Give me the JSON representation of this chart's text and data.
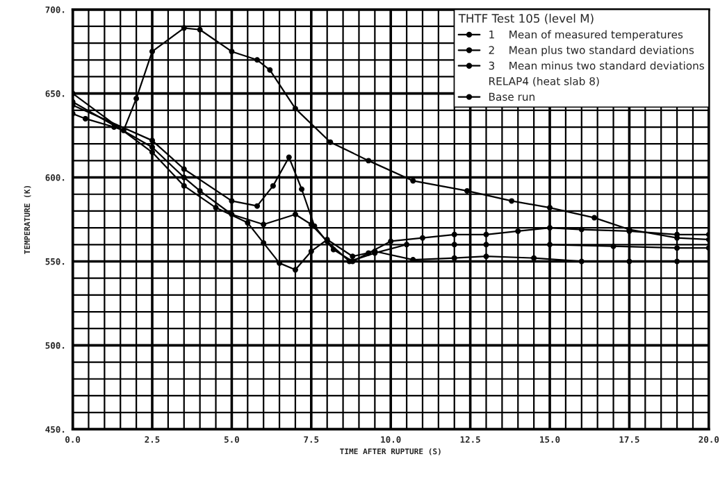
{
  "chart_data": {
    "type": "line",
    "xlabel": "TIME AFTER RUPTURE (S)",
    "ylabel": "TEMPERATURE (K)",
    "legend_title": "THTF Test 105 (level M)",
    "annotations": [
      "RELAP4 (heat slab 8)"
    ],
    "xlim": [
      0,
      20
    ],
    "ylim": [
      450,
      700
    ],
    "xticks": [
      {
        "value": 0,
        "label": "0.0"
      },
      {
        "value": 0.5,
        "label": null
      },
      {
        "value": 1,
        "label": null
      },
      {
        "value": 1.5,
        "label": null
      },
      {
        "value": 2,
        "label": null
      },
      {
        "value": 2.5,
        "label": "2.5"
      },
      {
        "value": 3,
        "label": null
      },
      {
        "value": 3.5,
        "label": null
      },
      {
        "value": 4,
        "label": null
      },
      {
        "value": 4.5,
        "label": null
      },
      {
        "value": 5,
        "label": "5.0"
      },
      {
        "value": 5.5,
        "label": null
      },
      {
        "value": 6,
        "label": null
      },
      {
        "value": 6.5,
        "label": null
      },
      {
        "value": 7,
        "label": null
      },
      {
        "value": 7.5,
        "label": "7.5"
      },
      {
        "value": 8,
        "label": null
      },
      {
        "value": 8.5,
        "label": null
      },
      {
        "value": 9,
        "label": null
      },
      {
        "value": 9.5,
        "label": null
      },
      {
        "value": 10,
        "label": "10.0"
      },
      {
        "value": 10.5,
        "label": null
      },
      {
        "value": 11,
        "label": null
      },
      {
        "value": 11.5,
        "label": null
      },
      {
        "value": 12,
        "label": null
      },
      {
        "value": 12.5,
        "label": "12.5"
      },
      {
        "value": 13,
        "label": null
      },
      {
        "value": 13.5,
        "label": null
      },
      {
        "value": 14,
        "label": null
      },
      {
        "value": 14.5,
        "label": null
      },
      {
        "value": 15,
        "label": "15.0"
      },
      {
        "value": 15.5,
        "label": null
      },
      {
        "value": 16,
        "label": null
      },
      {
        "value": 16.5,
        "label": null
      },
      {
        "value": 17,
        "label": null
      },
      {
        "value": 17.5,
        "label": "17.5"
      },
      {
        "value": 18,
        "label": null
      },
      {
        "value": 18.5,
        "label": null
      },
      {
        "value": 19,
        "label": null
      },
      {
        "value": 19.5,
        "label": null
      },
      {
        "value": 20,
        "label": "20.0"
      }
    ],
    "yticks": [
      {
        "value": 450,
        "label": "450."
      },
      {
        "value": 460,
        "label": null
      },
      {
        "value": 470,
        "label": null
      },
      {
        "value": 480,
        "label": null
      },
      {
        "value": 490,
        "label": null
      },
      {
        "value": 500,
        "label": "500."
      },
      {
        "value": 510,
        "label": null
      },
      {
        "value": 520,
        "label": null
      },
      {
        "value": 530,
        "label": null
      },
      {
        "value": 540,
        "label": null
      },
      {
        "value": 550,
        "label": "550."
      },
      {
        "value": 560,
        "label": null
      },
      {
        "value": 570,
        "label": null
      },
      {
        "value": 580,
        "label": null
      },
      {
        "value": 590,
        "label": null
      },
      {
        "value": 600,
        "label": "600."
      },
      {
        "value": 610,
        "label": null
      },
      {
        "value": 620,
        "label": null
      },
      {
        "value": 630,
        "label": null
      },
      {
        "value": 640,
        "label": null
      },
      {
        "value": 650,
        "label": "650."
      },
      {
        "value": 660,
        "label": null
      },
      {
        "value": 670,
        "label": null
      },
      {
        "value": 680,
        "label": null
      },
      {
        "value": 690,
        "label": null
      },
      {
        "value": 700,
        "label": "700."
      }
    ],
    "grid": true,
    "legend": "top right",
    "marker": "circle",
    "line_style": "solid",
    "series": [
      {
        "name": "1    Mean of measured temperatures",
        "color": "#000000",
        "x": [
          0,
          2.5,
          3.5,
          4,
          5,
          6,
          7,
          7.5,
          8,
          8.7,
          9.5,
          10.5,
          12,
          13,
          15,
          17,
          19,
          20
        ],
        "values": [
          645,
          618,
          600,
          592,
          578,
          572,
          578,
          572,
          562,
          550,
          555,
          560,
          560,
          560,
          560,
          559,
          558,
          558
        ]
      },
      {
        "name": "2    Mean plus two standard deviations",
        "color": "#000000",
        "x": [
          0,
          2.5,
          3.5,
          5,
          5.8,
          6.3,
          6.8,
          7.2,
          7.6,
          8.2,
          8.8,
          9.3,
          10,
          11,
          12,
          13,
          14,
          15,
          16,
          17.5,
          19,
          20
        ],
        "values": [
          643,
          622,
          605,
          586,
          583,
          595,
          612,
          593,
          571,
          557,
          550,
          555,
          562,
          564,
          566,
          566,
          568,
          570,
          569,
          568,
          566,
          566
        ]
      },
      {
        "name": "3    Mean minus two standard deviations",
        "color": "#000000",
        "x": [
          0,
          2.5,
          3.5,
          4.5,
          5.5,
          6,
          6.5,
          7,
          7.5,
          8,
          8.8,
          9.5,
          10.7,
          12,
          13,
          14.5,
          16,
          17.5,
          19
        ],
        "values": [
          650,
          615,
          595,
          582,
          573,
          561,
          549,
          545,
          556,
          563,
          553,
          556,
          551,
          552,
          553,
          552,
          550,
          550,
          550
        ]
      },
      {
        "name": "Base run",
        "color": "#000000",
        "x": [
          0,
          0.4,
          1.3,
          1.6,
          2,
          2.5,
          3.5,
          4,
          5,
          5.8,
          6.2,
          7,
          8.1,
          9.3,
          10.7,
          12.4,
          13.8,
          15,
          16.4,
          17.5,
          19,
          20
        ],
        "values": [
          638,
          635,
          630,
          628,
          647,
          675,
          689,
          688,
          675,
          670,
          664,
          641,
          621,
          610,
          598,
          592,
          586,
          582,
          576,
          569,
          564,
          563
        ]
      }
    ]
  }
}
